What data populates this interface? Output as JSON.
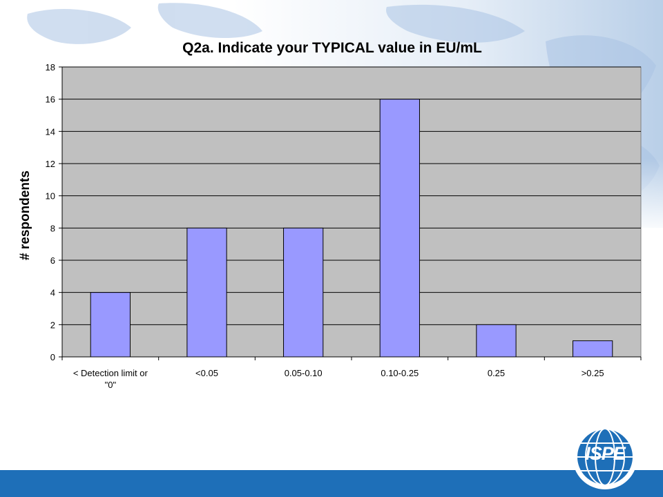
{
  "chart_data": {
    "type": "bar",
    "title": "Q2a. Indicate your TYPICAL value in EU/mL",
    "xlabel": "",
    "ylabel": "# respondents",
    "categories": [
      [
        "< Detection limit or",
        "\"0\""
      ],
      [
        "<0.05"
      ],
      [
        "0.05-0.10"
      ],
      [
        "0.10-0.25"
      ],
      [
        "0.25"
      ],
      [
        ">0.25"
      ]
    ],
    "values": [
      4,
      8,
      8,
      16,
      2,
      1
    ],
    "ylim": [
      0,
      18
    ],
    "yticks": [
      0,
      2,
      4,
      6,
      8,
      10,
      12,
      14,
      16,
      18
    ],
    "grid": true,
    "legend": "none",
    "colors": {
      "bar": "#9999ff",
      "plot_area": "#c0c0c0",
      "bar_border": "#000000"
    }
  },
  "branding": {
    "logo_text": "ISPE",
    "footer_color": "#1e6fb8"
  }
}
